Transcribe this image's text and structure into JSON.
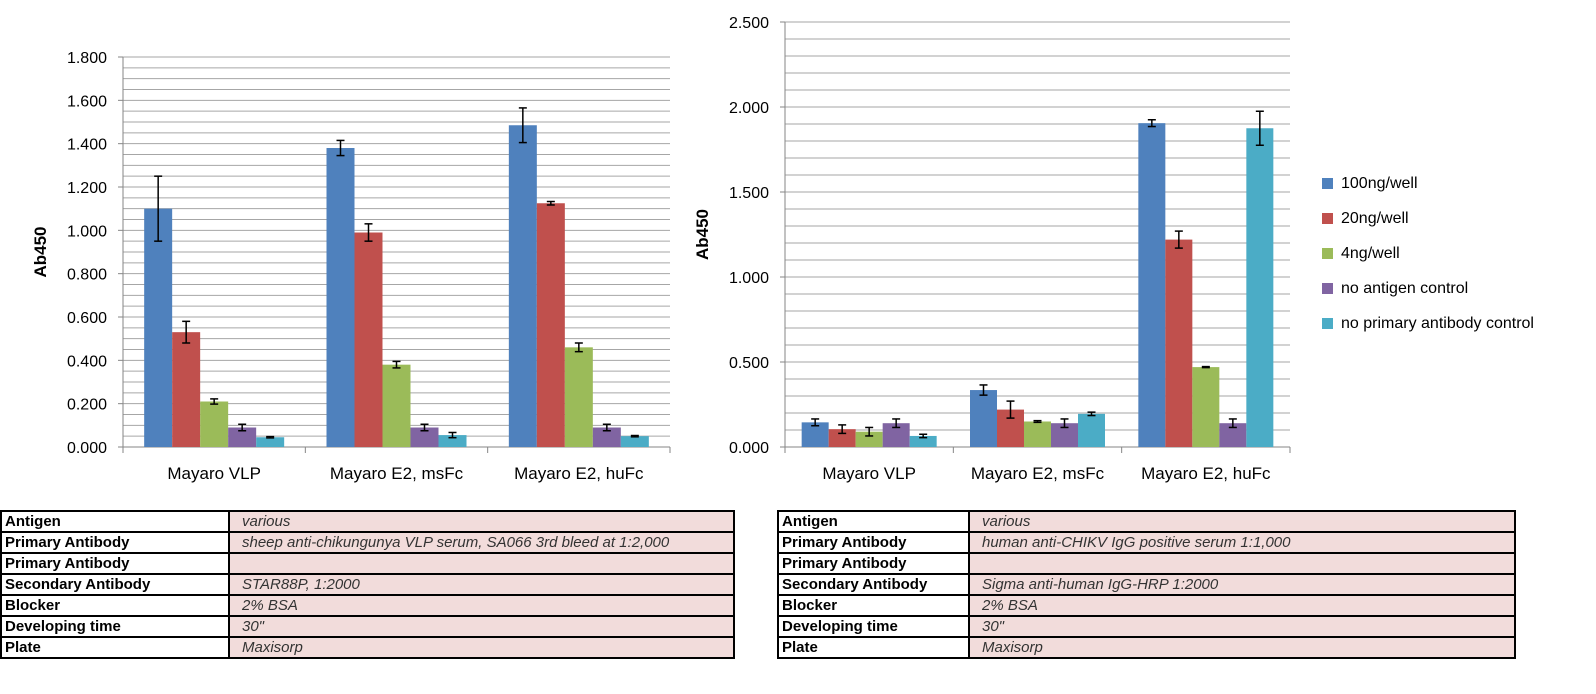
{
  "chart_data": [
    {
      "type": "bar",
      "ylabel": "Ab450",
      "ylim": [
        0,
        1.8
      ],
      "yticks": [
        "0.000",
        "0.200",
        "0.400",
        "0.600",
        "0.800",
        "1.000",
        "1.200",
        "1.400",
        "1.600",
        "1.800"
      ],
      "categories": [
        "Mayaro VLP",
        "Mayaro E2, msFc",
        "Mayaro E2, huFc"
      ],
      "series": [
        {
          "name": "100ng/well",
          "color": "#4f81bd",
          "values": [
            1.1,
            1.38,
            1.485
          ],
          "errors": [
            0.15,
            0.035,
            0.08
          ]
        },
        {
          "name": "20ng/well",
          "color": "#c0504d",
          "values": [
            0.53,
            0.99,
            1.125
          ],
          "errors": [
            0.05,
            0.04,
            0.008
          ]
        },
        {
          "name": "4ng/well",
          "color": "#9bbb59",
          "values": [
            0.21,
            0.38,
            0.46
          ],
          "errors": [
            0.012,
            0.015,
            0.02
          ]
        },
        {
          "name": "no antigen control",
          "color": "#8064a2",
          "values": [
            0.09,
            0.09,
            0.09
          ],
          "errors": [
            0.015,
            0.015,
            0.015
          ]
        },
        {
          "name": "no primary antibody control",
          "color": "#4bacc6",
          "values": [
            0.045,
            0.055,
            0.05
          ],
          "errors": [
            0.003,
            0.012,
            0.003
          ]
        }
      ],
      "grid": true
    },
    {
      "type": "bar",
      "ylabel": "Ab450",
      "ylim": [
        0,
        2.5
      ],
      "yticks": [
        "0.000",
        "0.500",
        "1.000",
        "1.500",
        "2.000",
        "2.500"
      ],
      "categories": [
        "Mayaro VLP",
        "Mayaro E2, msFc",
        "Mayaro E2, huFc"
      ],
      "series": [
        {
          "name": "100ng/well",
          "color": "#4f81bd",
          "values": [
            0.145,
            0.335,
            1.905
          ],
          "errors": [
            0.02,
            0.03,
            0.02
          ]
        },
        {
          "name": "20ng/well",
          "color": "#c0504d",
          "values": [
            0.105,
            0.22,
            1.22
          ],
          "errors": [
            0.025,
            0.05,
            0.05
          ]
        },
        {
          "name": "4ng/well",
          "color": "#9bbb59",
          "values": [
            0.09,
            0.15,
            0.47
          ],
          "errors": [
            0.025,
            0.005,
            0.003
          ]
        },
        {
          "name": "no antigen control",
          "color": "#8064a2",
          "values": [
            0.14,
            0.14,
            0.14
          ],
          "errors": [
            0.025,
            0.025,
            0.025
          ]
        },
        {
          "name": "no primary antibody control",
          "color": "#4bacc6",
          "values": [
            0.065,
            0.195,
            1.875
          ],
          "errors": [
            0.01,
            0.01,
            0.1
          ]
        }
      ],
      "grid": true,
      "legend": "right"
    }
  ],
  "legend": {
    "items": [
      "100ng/well",
      "20ng/well",
      "4ng/well",
      "no antigen control",
      "no primary antibody control"
    ],
    "colors": [
      "#4f81bd",
      "#c0504d",
      "#9bbb59",
      "#8064a2",
      "#4bacc6"
    ]
  },
  "table_left": [
    {
      "key": "Antigen",
      "value": "various"
    },
    {
      "key": "Primary Antibody",
      "value": "sheep anti-chikungunya VLP serum, SA066 3rd bleed at 1:2,000"
    },
    {
      "key": "Primary Antibody",
      "value": ""
    },
    {
      "key": "Secondary Antibody",
      "value": "STAR88P, 1:2000"
    },
    {
      "key": "Blocker",
      "value": "2% BSA"
    },
    {
      "key": "Developing time",
      "value": "30\""
    },
    {
      "key": "Plate",
      "value": "Maxisorp"
    }
  ],
  "table_right": [
    {
      "key": "Antigen",
      "value": "various"
    },
    {
      "key": "Primary Antibody",
      "value": "human anti-CHIKV IgG positive serum 1:1,000"
    },
    {
      "key": "Primary Antibody",
      "value": ""
    },
    {
      "key": "Secondary Antibody",
      "value": "Sigma anti-human IgG-HRP 1:2000"
    },
    {
      "key": "Blocker",
      "value": "2% BSA"
    },
    {
      "key": "Developing time",
      "value": "30\""
    },
    {
      "key": "Plate",
      "value": "Maxisorp"
    }
  ]
}
